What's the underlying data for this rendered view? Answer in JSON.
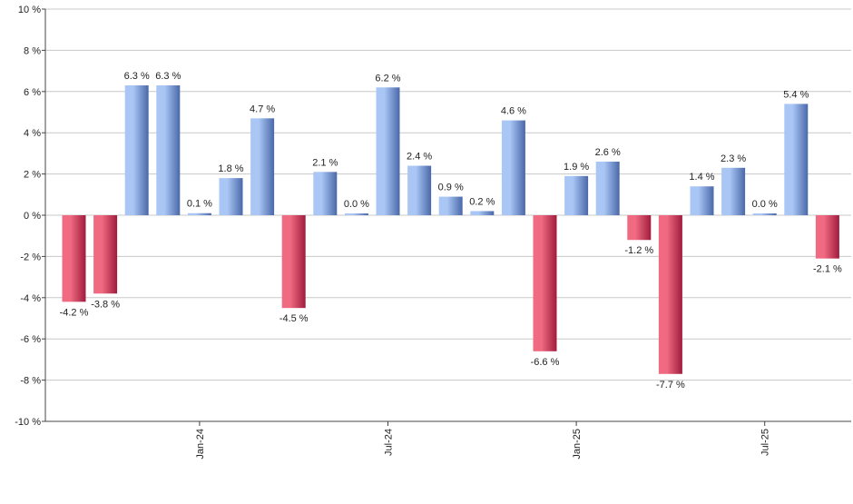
{
  "chart_data": {
    "type": "bar",
    "title": "",
    "xlabel": "",
    "ylabel": "",
    "ylim": [
      -10,
      10
    ],
    "y_ticks": [
      10,
      8,
      6,
      4,
      2,
      0,
      -2,
      -4,
      -6,
      -8,
      -10
    ],
    "y_tick_suffix": " %",
    "grid": "horizontal",
    "values": [
      -4.2,
      -3.8,
      6.3,
      6.3,
      0.1,
      1.8,
      4.7,
      -4.5,
      2.1,
      0.0,
      6.2,
      2.4,
      0.9,
      0.2,
      4.6,
      -6.6,
      1.9,
      2.6,
      -1.2,
      -7.7,
      1.4,
      2.3,
      0.0,
      5.4,
      -2.1
    ],
    "value_labels": [
      "-4.2 %",
      "-3.8 %",
      "6.3 %",
      "6.3 %",
      "0.1 %",
      "1.8 %",
      "4.7 %",
      "-4.5 %",
      "2.1 %",
      "0.0 %",
      "6.2 %",
      "2.4 %",
      "0.9 %",
      "0.2 %",
      "4.6 %",
      "-6.6 %",
      "1.9 %",
      "2.6 %",
      "-1.2 %",
      "-7.7 %",
      "1.4 %",
      "2.3 %",
      "0.0 %",
      "5.4 %",
      "-2.1 %"
    ],
    "x_ticks": [
      {
        "label": "Jan-24",
        "index": 4
      },
      {
        "label": "Jul-24",
        "index": 10
      },
      {
        "label": "Jan-25",
        "index": 16
      },
      {
        "label": "Jul-25",
        "index": 22
      }
    ],
    "colors": {
      "positive_light": "#a9c6f5",
      "positive_dark": "#4a68a8",
      "negative_light": "#f06a82",
      "negative_dark": "#a01c3c",
      "grid": "#c8c8c8",
      "axis": "#444444"
    }
  }
}
